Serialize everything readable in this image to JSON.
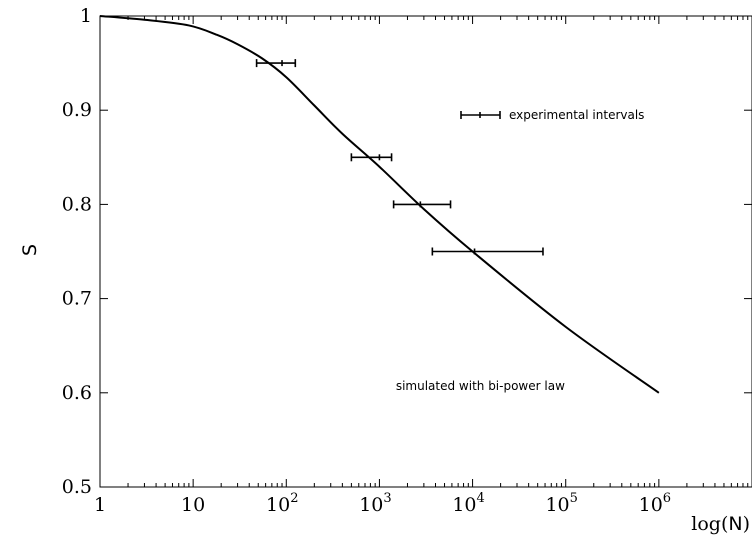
{
  "chart_data": {
    "type": "line",
    "title": "",
    "xscale": "log",
    "xlim": [
      1,
      10000000
    ],
    "ylim": [
      0.5,
      1.0
    ],
    "grid": false,
    "ylabel": "S",
    "xlabel_prefix": "log(",
    "xlabel_var": "N",
    "xlabel_suffix": ")",
    "x_ticks": [
      {
        "value": 1,
        "base": "1",
        "exp": ""
      },
      {
        "value": 10,
        "base": "10",
        "exp": ""
      },
      {
        "value": 100,
        "base": "10",
        "exp": "2"
      },
      {
        "value": 1000,
        "base": "10",
        "exp": "3"
      },
      {
        "value": 10000,
        "base": "10",
        "exp": "4"
      },
      {
        "value": 100000,
        "base": "10",
        "exp": "5"
      },
      {
        "value": 1000000,
        "base": "10",
        "exp": "6"
      }
    ],
    "y_ticks": [
      {
        "value": 0.5,
        "label": "0.5"
      },
      {
        "value": 0.6,
        "label": "0.6"
      },
      {
        "value": 0.7,
        "label": "0.7"
      },
      {
        "value": 0.8,
        "label": "0.8"
      },
      {
        "value": 0.9,
        "label": "0.9"
      },
      {
        "value": 1.0,
        "label": "1"
      }
    ],
    "series": [
      {
        "points": [
          [
            1,
            1.0
          ],
          [
            3,
            0.996
          ],
          [
            9,
            0.99
          ],
          [
            18,
            0.98
          ],
          [
            30,
            0.97
          ],
          [
            55,
            0.955
          ],
          [
            100,
            0.935
          ],
          [
            200,
            0.905
          ],
          [
            400,
            0.875
          ],
          [
            1000,
            0.84
          ],
          [
            3000,
            0.795
          ],
          [
            10000,
            0.75
          ],
          [
            100000,
            0.67
          ],
          [
            1000000,
            0.6
          ]
        ]
      }
    ],
    "error_bars": [
      {
        "x": 90,
        "y": 0.95,
        "xmin": 48,
        "xmax": 125
      },
      {
        "x": 1000,
        "y": 0.85,
        "xmin": 500,
        "xmax": 1350
      },
      {
        "x": 2750,
        "y": 0.8,
        "xmin": 1420,
        "xmax": 5800
      },
      {
        "x": 10500,
        "y": 0.75,
        "xmin": 3700,
        "xmax": 57000
      }
    ],
    "legend": {
      "label": "experimental intervals",
      "location": "upper-right"
    },
    "annotations": [
      {
        "text": "simulated with bi-power law",
        "x": 1500,
        "y": 0.603
      }
    ]
  }
}
